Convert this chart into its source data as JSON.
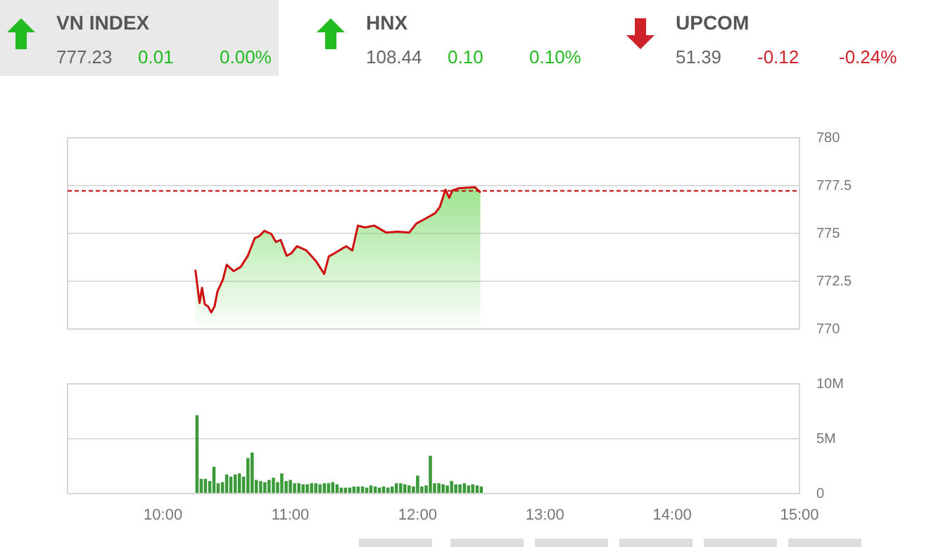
{
  "chart_data": [
    {
      "type": "other",
      "title": "VN INDEX",
      "annotations": [
        "777.23"
      ],
      "values": [
        0.01,
        0.0
      ],
      "value_labels": [
        "0.01",
        "0.00%"
      ],
      "color": "#22bb22"
    },
    {
      "type": "other",
      "title": "HNX",
      "annotations": [
        "108.44"
      ],
      "values": [
        0.1,
        0.1
      ],
      "value_labels": [
        "0.10",
        "0.10%"
      ],
      "color": "#22bb22"
    },
    {
      "type": "other",
      "title": "UPCOM",
      "annotations": [
        "51.39"
      ],
      "values": [
        -0.12,
        -0.24
      ],
      "value_labels": [
        "-0.12",
        "-0.24%"
      ],
      "color": "#d0222a"
    },
    {
      "type": "area",
      "xlim": [
        9.25,
        15
      ],
      "ylim": [
        770,
        780
      ],
      "yticks": [
        770,
        {
          "value": 772.5,
          "label": "772.5"
        },
        775,
        {
          "value": 777.5,
          "label": "777.5"
        },
        780
      ],
      "grid": "y",
      "tick_labels": "y",
      "legend": false,
      "ref_lines": [
        {
          "axis": "y",
          "value": 777.22,
          "label": null,
          "color": "#c00000",
          "line_style": "dashed"
        }
      ],
      "series": [
        {
          "color": "#d01010",
          "x": [
            10.254,
            10.287,
            10.306,
            10.328,
            10.353,
            10.379,
            10.405,
            10.427,
            10.471,
            10.5,
            10.555,
            10.61,
            10.666,
            10.721,
            10.758,
            10.795,
            10.85,
            10.887,
            10.924,
            10.971,
            11.008,
            11.052,
            11.126,
            11.2,
            11.266,
            11.302,
            11.347,
            11.438,
            11.487,
            11.531,
            11.586,
            11.659,
            11.752,
            11.843,
            11.935,
            11.99,
            12.064,
            12.138,
            12.174,
            12.219,
            12.248,
            12.274,
            12.321,
            12.45,
            12.494
          ],
          "values": [
            773.1,
            771.36,
            772.16,
            771.3,
            771.19,
            770.87,
            771.19,
            771.95,
            772.6,
            773.36,
            773.03,
            773.25,
            773.83,
            774.76,
            774.87,
            775.13,
            774.98,
            774.55,
            774.66,
            773.83,
            773.96,
            774.33,
            774.11,
            773.57,
            772.88,
            773.79,
            773.96,
            774.33,
            774.11,
            775.41,
            775.31,
            775.41,
            775.05,
            775.09,
            775.05,
            775.52,
            775.78,
            776.06,
            776.38,
            777.29,
            776.86,
            777.25,
            777.36,
            777.42,
            777.14
          ]
        }
      ]
    },
    {
      "type": "bar",
      "xlim": [
        9.25,
        15
      ],
      "xticks": [
        {
          "value": 10,
          "label": "10:00"
        },
        {
          "value": 11,
          "label": "11:00"
        },
        {
          "value": 12,
          "label": "12:00"
        },
        {
          "value": 13,
          "label": "13:00"
        },
        {
          "value": 14,
          "label": "14:00"
        },
        {
          "value": 15,
          "label": "15:00"
        }
      ],
      "ylim": [
        0,
        10
      ],
      "yticks": [
        0,
        {
          "value": 5,
          "label": "5M"
        },
        {
          "value": 10,
          "label": "10M"
        }
      ],
      "grid": "y",
      "legend": false,
      "color": "#3a9a3a",
      "x": [
        10.267,
        10.3,
        10.333,
        10.367,
        10.4,
        10.433,
        10.467,
        10.5,
        10.533,
        10.567,
        10.6,
        10.633,
        10.667,
        10.7,
        10.733,
        10.767,
        10.8,
        10.833,
        10.867,
        10.9,
        10.933,
        10.967,
        11,
        11.033,
        11.067,
        11.1,
        11.133,
        11.167,
        11.2,
        11.233,
        11.267,
        11.3,
        11.333,
        11.367,
        11.4,
        11.433,
        11.467,
        11.5,
        11.533,
        11.567,
        11.6,
        11.633,
        11.667,
        11.7,
        11.733,
        11.767,
        11.8,
        11.833,
        11.867,
        11.9,
        11.933,
        11.967,
        12,
        12.033,
        12.067,
        12.1,
        12.133,
        12.167,
        12.2,
        12.233,
        12.267,
        12.3,
        12.333,
        12.367,
        12.4,
        12.433,
        12.467,
        12.5
      ],
      "values": [
        7.1,
        1.3,
        1.3,
        1.1,
        2.4,
        0.9,
        1.0,
        1.7,
        1.5,
        1.7,
        1.8,
        1.5,
        3.2,
        3.7,
        1.2,
        1.1,
        1.0,
        1.2,
        1.4,
        1.0,
        1.8,
        1.1,
        1.2,
        0.9,
        0.9,
        0.8,
        0.8,
        0.9,
        0.9,
        0.8,
        0.9,
        0.9,
        1.0,
        0.8,
        0.5,
        0.5,
        0.5,
        0.6,
        0.6,
        0.6,
        0.5,
        0.7,
        0.6,
        0.5,
        0.6,
        0.5,
        0.6,
        0.9,
        0.9,
        0.8,
        0.7,
        0.6,
        1.6,
        0.6,
        0.7,
        3.4,
        0.9,
        0.9,
        0.8,
        0.7,
        1.1,
        0.8,
        0.8,
        0.9,
        0.7,
        0.8,
        0.7,
        0.6
      ]
    }
  ]
}
